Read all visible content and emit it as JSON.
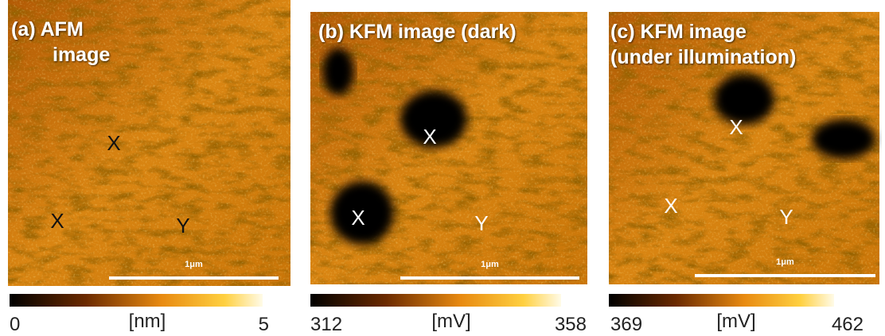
{
  "panels": [
    {
      "title": [
        "(a) AFM",
        "image"
      ],
      "markers": [
        "X",
        "X",
        "Y"
      ],
      "scale_bar": "1μm",
      "colorbar": {
        "min": 0,
        "unit": "[nm]",
        "max": 5
      }
    },
    {
      "title": [
        "(b) KFM image (dark)"
      ],
      "markers": [
        "X",
        "X",
        "Y"
      ],
      "scale_bar": "1μm",
      "colorbar": {
        "min": 312,
        "unit": "[mV]",
        "max": 358
      }
    },
    {
      "title": [
        "(c) KFM image",
        "(under illumination)"
      ],
      "markers": [
        "X",
        "X",
        "Y"
      ],
      "scale_bar": "1μm",
      "colorbar": {
        "min": 369,
        "unit": "[mV]",
        "max": 462
      }
    }
  ]
}
